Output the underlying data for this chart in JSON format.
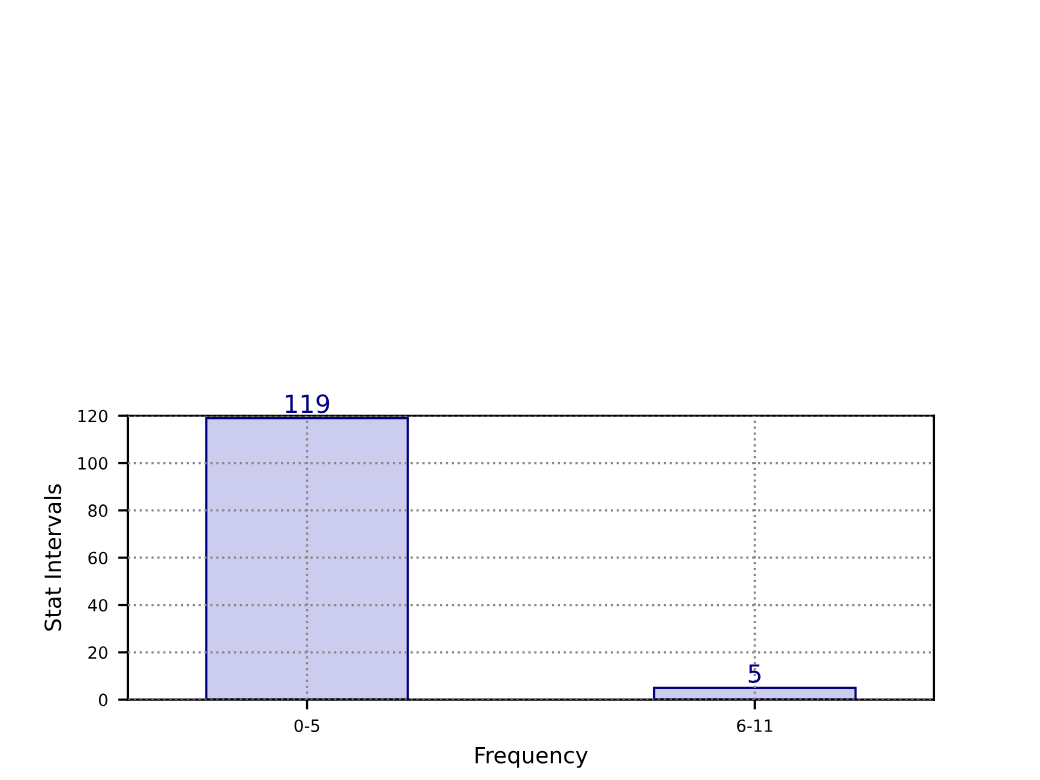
{
  "chart_data": {
    "type": "bar",
    "xlabel": "Frequency",
    "ylabel": "Stat Intervals",
    "categories": [
      "0-5",
      "6-11"
    ],
    "series": [
      {
        "color": "#ccccee",
        "values": [
          119,
          5
        ]
      }
    ],
    "ylim": [
      0,
      120
    ],
    "yticks": [
      0,
      20,
      40,
      60,
      80,
      100,
      120
    ],
    "grid": true,
    "data_labels": true
  }
}
